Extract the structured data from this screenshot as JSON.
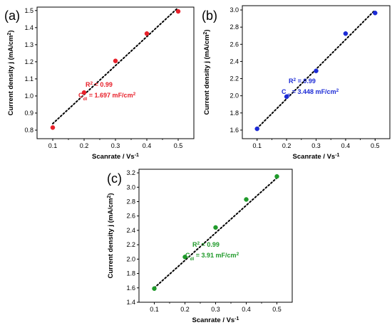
{
  "chart_data": [
    {
      "type": "scatter",
      "panel_label": "(a)",
      "xlabel": "Scanrate / Vs",
      "xlabel_sup": "-1",
      "ylabel": "Current density j (mA/cm",
      "ylabel_sup": "2",
      "ylabel_tail": ")",
      "xlim": [
        0.05,
        0.55
      ],
      "ylim": [
        0.75,
        1.52
      ],
      "xticks": [
        "0.1",
        "0.2",
        "0.3",
        "0.4",
        "0.5"
      ],
      "yticks": [
        "0.8",
        "0.9",
        "1.0",
        "1.1",
        "1.2",
        "1.3",
        "1.4",
        "1.5"
      ],
      "color": "#e8202a",
      "x": [
        0.1,
        0.2,
        0.3,
        0.4,
        0.5
      ],
      "y": [
        0.815,
        1.02,
        1.205,
        1.365,
        1.495
      ],
      "fit_line": {
        "x": [
          0.1,
          0.5
        ],
        "y": [
          0.838,
          1.517
        ]
      },
      "annotation": {
        "r2": "R",
        "r2_sup": "2",
        "r2_value": " = 0.99",
        "cdl": "C",
        "cdl_sub": "dl",
        "cdl_value": " = 1.697 mF/cm",
        "cdl_sup": "2"
      }
    },
    {
      "type": "scatter",
      "panel_label": "(b)",
      "xlabel": "Scanrate / Vs",
      "xlabel_sup": "-1",
      "ylabel": "Current density j (mA/cm",
      "ylabel_sup": "2",
      "ylabel_tail": ")",
      "xlim": [
        0.05,
        0.55
      ],
      "ylim": [
        1.5,
        3.05
      ],
      "xticks": [
        "0.1",
        "0.2",
        "0.3",
        "0.4",
        "0.5"
      ],
      "yticks": [
        "1.6",
        "1.8",
        "2.0",
        "2.2",
        "2.4",
        "2.6",
        "2.8",
        "3.0"
      ],
      "color": "#1c2bd6",
      "x": [
        0.1,
        0.2,
        0.3,
        0.4,
        0.5
      ],
      "y": [
        1.615,
        1.99,
        2.29,
        2.725,
        2.965
      ],
      "fit_line": {
        "x": [
          0.1,
          0.5
        ],
        "y": [
          1.62,
          3.0
        ]
      },
      "annotation": {
        "r2": "R",
        "r2_sup": "2",
        "r2_value": " = 0.99",
        "cdl": "C",
        "cdl_sub": "dl",
        "cdl_value": " = 3.448 mF/cm",
        "cdl_sup": "2"
      }
    },
    {
      "type": "scatter",
      "panel_label": "(c)",
      "xlabel": "Scanrate / Vs",
      "xlabel_sup": "-1",
      "ylabel": "Current density j (mA/cm",
      "ylabel_sup": "2",
      "ylabel_tail": ")",
      "xlim": [
        0.05,
        0.55
      ],
      "ylim": [
        1.4,
        3.25
      ],
      "xticks": [
        "0.1",
        "0.2",
        "0.3",
        "0.4",
        "0.5"
      ],
      "yticks": [
        "1.4",
        "1.6",
        "1.8",
        "2.0",
        "2.2",
        "2.4",
        "2.6",
        "2.8",
        "3.0",
        "3.2"
      ],
      "color": "#1f9a2a",
      "x": [
        0.1,
        0.2,
        0.3,
        0.4,
        0.5
      ],
      "y": [
        1.59,
        2.03,
        2.44,
        2.83,
        3.15
      ],
      "fit_line": {
        "x": [
          0.1,
          0.5
        ],
        "y": [
          1.6,
          3.13
        ]
      },
      "annotation": {
        "r2": "R",
        "r2_sup": "2",
        "r2_value": " = 0.99",
        "cdl": "C",
        "cdl_sub": "dl",
        "cdl_value": " = 3.91 mF/cm",
        "cdl_sup": "2"
      }
    }
  ]
}
